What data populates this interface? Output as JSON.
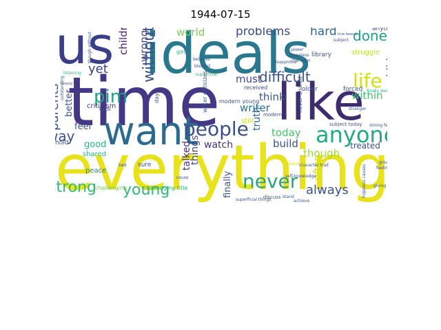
{
  "figure": {
    "title": "1944-07-15"
  },
  "colors": {
    "navy": "#3b2f6e",
    "indigo": "#443983",
    "purple": "#46185e",
    "blue": "#31688e",
    "teal": "#21918c",
    "green": "#35b779",
    "lime": "#6ece58",
    "yellow": "#e6e419",
    "gold": "#d8e219"
  },
  "words": [
    {
      "text": "time",
      "color": "#433786"
    },
    {
      "text": "everything",
      "color": "#e8e21d"
    },
    {
      "text": "ideals",
      "color": "#2a788e"
    },
    {
      "text": "like",
      "color": "#3e2d6e"
    },
    {
      "text": "us",
      "color": "#3b3f87"
    },
    {
      "text": "want",
      "color": "#2c6b8e"
    },
    {
      "text": "people",
      "color": "#3a4e8a"
    },
    {
      "text": "anyone",
      "color": "#26a983"
    },
    {
      "text": "never",
      "color": "#2ea17e"
    },
    {
      "text": "strong",
      "color": "#35b779"
    },
    {
      "text": "young",
      "color": "#35b779"
    },
    {
      "text": "parents",
      "color": "#3a528b"
    },
    {
      "text": "pim",
      "color": "#1fa088"
    },
    {
      "text": "without",
      "color": "#3c508b"
    },
    {
      "text": "life",
      "color": "#d0e11c"
    },
    {
      "text": "difficult",
      "color": "#3b528b"
    },
    {
      "text": "problems",
      "color": "#3e4a89"
    },
    {
      "text": "done",
      "color": "#1f9e89"
    },
    {
      "text": "hard",
      "color": "#31688e"
    },
    {
      "text": "world",
      "color": "#7ad151"
    },
    {
      "text": "yet",
      "color": "#3b3f87"
    },
    {
      "text": "way",
      "color": "#3b528b"
    },
    {
      "text": "children",
      "color": "#482475"
    },
    {
      "text": "wrong",
      "color": "#3e4c8a"
    },
    {
      "text": "always",
      "color": "#3b528b"
    },
    {
      "text": "must",
      "color": "#3e4a89"
    },
    {
      "text": "though",
      "color": "#a0da39"
    },
    {
      "text": "within",
      "color": "#3fbc73"
    },
    {
      "text": "think",
      "color": "#3b528b"
    },
    {
      "text": "writer",
      "color": "#2c728e"
    },
    {
      "text": "today",
      "color": "#4ac16d"
    },
    {
      "text": "build",
      "color": "#3b528b"
    },
    {
      "text": "watch",
      "color": "#46327e"
    },
    {
      "text": "truth",
      "color": "#31688e"
    },
    {
      "text": "treated",
      "color": "#3a538b"
    },
    {
      "text": "child",
      "color": "#482173"
    },
    {
      "text": "often",
      "color": "#d5e21a"
    },
    {
      "text": "feel",
      "color": "#3a538b"
    },
    {
      "text": "better",
      "color": "#3b528b"
    },
    {
      "text": "good",
      "color": "#2db27d"
    },
    {
      "text": "things",
      "color": "#414487"
    },
    {
      "text": "talked",
      "color": "#46307e"
    },
    {
      "text": "finally",
      "color": "#3b528b"
    },
    {
      "text": "struggle",
      "color": "#bade28"
    },
    {
      "text": "anything",
      "color": "#3b528b"
    },
    {
      "text": "library",
      "color": "#3b528b"
    },
    {
      "text": "criticism",
      "color": "#46327e"
    },
    {
      "text": "shared",
      "color": "#2db27d"
    },
    {
      "text": "peace",
      "color": "#2a788e"
    },
    {
      "text": "sure",
      "color": "#3b528b"
    },
    {
      "text": "older",
      "color": "#3b528b"
    },
    {
      "text": "forced",
      "color": "#3b528b"
    },
    {
      "text": "received",
      "color": "#3b528b"
    },
    {
      "text": "still",
      "color": "#bddf26"
    },
    {
      "text": "hold",
      "color": "#3b528b"
    },
    {
      "text": "day",
      "color": "#3b528b"
    },
    {
      "text": "girl",
      "color": "#2db27d"
    },
    {
      "text": "book",
      "color": "#3b528b"
    },
    {
      "text": "challenging",
      "color": "#6ece58"
    },
    {
      "text": "challenging title",
      "color": "#2db27d"
    },
    {
      "text": "modern young",
      "color": "#3b528b"
    },
    {
      "text": "subject today",
      "color": "#3b528b"
    },
    {
      "text": "strong feeling",
      "color": "#3b528b"
    },
    {
      "text": "beautiful world",
      "color": "#6ece58"
    },
    {
      "text": "discuss",
      "color": "#3b528b"
    },
    {
      "text": "superficial things",
      "color": "#3b528b"
    },
    {
      "text": "never shared",
      "color": "#3b528b"
    },
    {
      "text": "writer criticizes",
      "color": "#3b528b"
    },
    {
      "text": "finally went",
      "color": "#2db27d"
    },
    {
      "text": "great deal",
      "color": "#3b528b"
    },
    {
      "text": "hopeless causes",
      "color": "#3b528b"
    },
    {
      "text": "character trait",
      "color": "#3b528b"
    },
    {
      "text": "modern",
      "color": "#3b528b"
    },
    {
      "text": "stranger",
      "color": "#3b528b"
    },
    {
      "text": "disapproval",
      "color": "#3b528b"
    },
    {
      "text": "power",
      "color": "#3b528b"
    },
    {
      "text": "hopeless",
      "color": "#3b528b"
    },
    {
      "text": "character",
      "color": "#3b528b"
    },
    {
      "text": "subject",
      "color": "#3b528b"
    },
    {
      "text": "true beauty",
      "color": "#3b528b"
    },
    {
      "text": "superficial",
      "color": "#2db27d"
    },
    {
      "text": "though without",
      "color": "#3b528b"
    },
    {
      "text": "beauty",
      "color": "#3b528b"
    },
    {
      "text": "listening",
      "color": "#2db27d"
    },
    {
      "text": "believes",
      "color": "#3b528b"
    },
    {
      "text": "blessed",
      "color": "#3b528b"
    },
    {
      "text": "giving",
      "color": "#3b528b"
    },
    {
      "text": "feeling",
      "color": "#3b528b"
    },
    {
      "text": "bad",
      "color": "#3b528b"
    },
    {
      "text": "cause",
      "color": "#3b528b"
    },
    {
      "text": "stand",
      "color": "#3b528b"
    },
    {
      "text": "achieve",
      "color": "#3b528b"
    },
    {
      "text": "one outstanding character",
      "color": "#3b528b"
    },
    {
      "text": "self-knowledge",
      "color": "#3b528b"
    },
    {
      "text": "beautiful",
      "color": "#d8e219"
    },
    {
      "text": "outstanding",
      "color": "#3b528b"
    }
  ]
}
